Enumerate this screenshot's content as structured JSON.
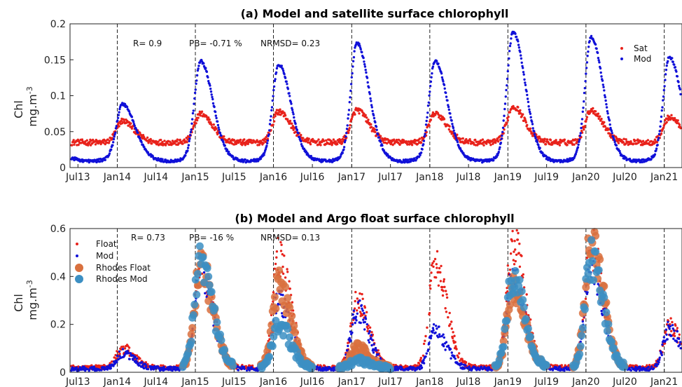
{
  "chart_data": [
    {
      "type": "scatter",
      "title": "(a) Model and satellite surface chlorophyll",
      "ylabel": "Chl",
      "yunit_base": "mg.m",
      "yunit_exp": "-3",
      "ylim": [
        0,
        0.2
      ],
      "yticks": [
        "0",
        "0.05",
        "0.1",
        "0.15",
        "0.2"
      ],
      "yticks_values": [
        0,
        0.05,
        0.1,
        0.15,
        0.2
      ],
      "xlim": [
        "2013-05-25",
        "2021-03-25"
      ],
      "xticks": [
        "Jul13",
        "Jan14",
        "Jul14",
        "Jan15",
        "Jul15",
        "Jan16",
        "Jul16",
        "Jan17",
        "Jul17",
        "Jan18",
        "Jul18",
        "Jan19",
        "Jul19",
        "Jan20",
        "Jul20",
        "Jan21"
      ],
      "xticks_dates": [
        "2013-07-01",
        "2014-01-01",
        "2014-07-01",
        "2015-01-01",
        "2015-07-01",
        "2016-01-01",
        "2016-07-01",
        "2017-01-01",
        "2017-07-01",
        "2018-01-01",
        "2018-07-01",
        "2019-01-01",
        "2019-07-01",
        "2020-01-01",
        "2020-07-01",
        "2021-01-01"
      ],
      "dashed_year_lines": [
        "2014-01-01",
        "2015-01-01",
        "2016-01-01",
        "2017-01-01",
        "2018-01-01",
        "2019-01-01",
        "2020-01-01",
        "2021-01-01"
      ],
      "stats": [
        "R= 0.9",
        "PB= -0.71 %",
        "NRMSD= 0.23"
      ],
      "legend": {
        "position": "top-right",
        "entries": [
          "Sat",
          "Mod"
        ]
      },
      "series": [
        {
          "name": "Sat",
          "color": "#e8221b",
          "marker": "dot",
          "annual_cycle": {
            "base": 0.035,
            "peaks": [
              0.065,
              0.075,
              0.078,
              0.08,
              0.075,
              0.085,
              0.08,
              0.07
            ]
          }
        },
        {
          "name": "Mod",
          "color": "#1010d8",
          "marker": "dot",
          "annual_cycle": {
            "base": 0.013,
            "peaks": [
              0.085,
              0.145,
              0.14,
              0.17,
              0.145,
              0.185,
              0.178,
              0.15
            ]
          }
        }
      ]
    },
    {
      "type": "scatter",
      "title": "(b) Model and Argo float surface chlorophyll",
      "ylabel": "Chl",
      "yunit_base": "mg.m",
      "yunit_exp": "-3",
      "ylim": [
        0,
        0.6
      ],
      "yticks": [
        "0",
        "0.2",
        "0.4",
        "0.6"
      ],
      "yticks_values": [
        0,
        0.2,
        0.4,
        0.6
      ],
      "xlim": [
        "2013-05-25",
        "2021-03-25"
      ],
      "xticks": [
        "Jul13",
        "Jan14",
        "Jul14",
        "Jan15",
        "Jul15",
        "Jan16",
        "Jul16",
        "Jan17",
        "Jul17",
        "Jan18",
        "Jul18",
        "Jan19",
        "Jul19",
        "Jan20",
        "Jul20",
        "Jan21"
      ],
      "xticks_dates": [
        "2013-07-01",
        "2014-01-01",
        "2014-07-01",
        "2015-01-01",
        "2015-07-01",
        "2016-01-01",
        "2016-07-01",
        "2017-01-01",
        "2017-07-01",
        "2018-01-01",
        "2018-07-01",
        "2019-01-01",
        "2019-07-01",
        "2020-01-01",
        "2020-07-01",
        "2021-01-01"
      ],
      "dashed_year_lines": [
        "2014-01-01",
        "2015-01-01",
        "2016-01-01",
        "2017-01-01",
        "2018-01-01",
        "2019-01-01",
        "2020-01-01",
        "2021-01-01"
      ],
      "stats": [
        "R= 0.73",
        "PB= -16 %",
        "NRMSD= 0.13"
      ],
      "legend": {
        "position": "top-left",
        "entries": [
          "Float",
          "Mod",
          "Rhodes Float",
          "Rhodes Mod"
        ]
      },
      "series": [
        {
          "name": "Float",
          "color": "#e8221b",
          "marker": "dot",
          "annual_cycle": {
            "base": 0.02,
            "peaks": [
              0.1,
              0.45,
              0.48,
              0.3,
              0.44,
              0.54,
              0.52,
              0.19
            ]
          }
        },
        {
          "name": "Mod",
          "color": "#1010d8",
          "marker": "dot",
          "annual_cycle": {
            "base": 0.015,
            "peaks": [
              0.08,
              0.42,
              0.3,
              0.26,
              0.17,
              0.4,
              0.45,
              0.18
            ]
          }
        },
        {
          "name": "Rhodes Float",
          "color": "#d9703e",
          "marker": "circle",
          "years_with_data": [
            2015,
            2016,
            2017,
            2019,
            2020
          ],
          "annual_cycle": {
            "base": 0.02,
            "peaks": [
              0,
              0.45,
              0.36,
              0.1,
              0,
              0.35,
              0.55,
              0
            ]
          }
        },
        {
          "name": "Rhodes Mod",
          "color": "#3c8fc3",
          "marker": "circle",
          "years_with_data": [
            2015,
            2016,
            2017,
            2019,
            2020
          ],
          "annual_cycle": {
            "base": 0.02,
            "peaks": [
              0,
              0.47,
              0.2,
              0.05,
              0,
              0.4,
              0.47,
              0
            ]
          }
        }
      ]
    }
  ]
}
